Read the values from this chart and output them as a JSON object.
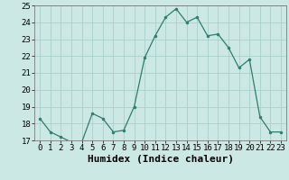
{
  "x": [
    0,
    1,
    2,
    3,
    4,
    5,
    6,
    7,
    8,
    9,
    10,
    11,
    12,
    13,
    14,
    15,
    16,
    17,
    18,
    19,
    20,
    21,
    22,
    23
  ],
  "y": [
    18.3,
    17.5,
    17.2,
    16.9,
    16.9,
    18.6,
    18.3,
    17.5,
    17.6,
    19.0,
    21.9,
    23.2,
    24.3,
    24.8,
    24.0,
    24.3,
    23.2,
    23.3,
    22.5,
    21.3,
    21.8,
    18.4,
    17.5,
    17.5
  ],
  "xlabel": "Humidex (Indice chaleur)",
  "ylim": [
    17,
    25
  ],
  "xlim": [
    -0.5,
    23.5
  ],
  "bg_color": "#cce8e4",
  "grid_color": "#aacfcb",
  "line_color": "#2e7d6e",
  "marker_color": "#2e7d6e",
  "tick_label_fontsize": 6.5,
  "xlabel_fontsize": 8
}
